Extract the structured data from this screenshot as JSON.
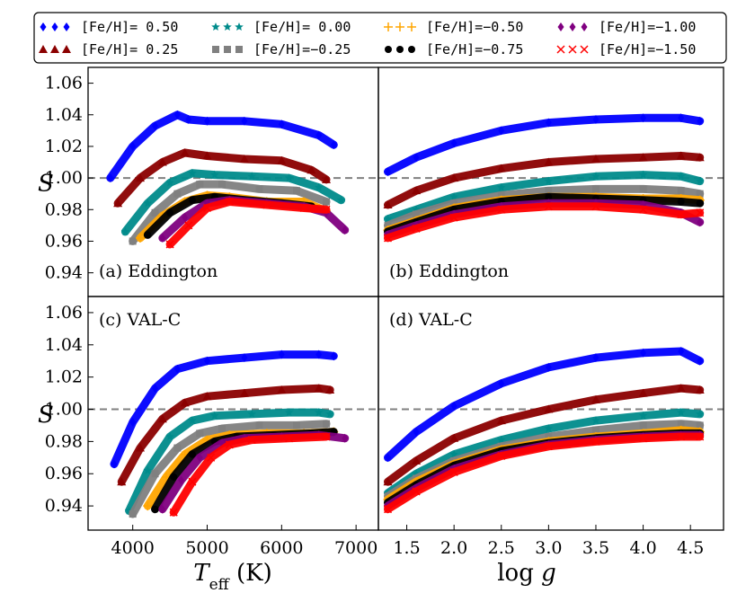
{
  "legend": [
    {
      "label": "[Fe/H]= 0.50",
      "color": "#0000ff",
      "marker": "diamond"
    },
    {
      "label": "[Fe/H]= 0.00",
      "color": "#008b8b",
      "marker": "star"
    },
    {
      "label": "[Fe/H]=−0.50",
      "color": "#ffa500",
      "marker": "plus"
    },
    {
      "label": "[Fe/H]=−1.00",
      "color": "#800080",
      "marker": "diamond"
    },
    {
      "label": "[Fe/H]= 0.25",
      "color": "#8b0000",
      "marker": "triangle"
    },
    {
      "label": "[Fe/H]=−0.25",
      "color": "#808080",
      "marker": "square"
    },
    {
      "label": "[Fe/H]=−0.75",
      "color": "#000000",
      "marker": "circle"
    },
    {
      "label": "[Fe/H]=−1.50",
      "color": "#ff0000",
      "marker": "x"
    }
  ],
  "chart_data": [
    {
      "panel": "(a) Eddington",
      "type": "scatter",
      "xlim": [
        3400,
        7300
      ],
      "ylim": [
        0.925,
        1.07
      ],
      "xticks": [],
      "yticks": [
        "0.94",
        "0.96",
        "0.98",
        "1.00",
        "1.02",
        "1.04",
        "1.06"
      ],
      "ylabel": "S",
      "xlabel": "",
      "reference_line": 1.0,
      "grid": false,
      "series": [
        {
          "name": "[Fe/H]= 0.50",
          "x": [
            3700,
            4000,
            4300,
            4600,
            4750,
            5000,
            5500,
            6000,
            6500,
            6700
          ],
          "y": [
            1.0,
            1.02,
            1.033,
            1.04,
            1.037,
            1.036,
            1.036,
            1.034,
            1.027,
            1.021
          ]
        },
        {
          "name": "[Fe/H]= 0.25",
          "x": [
            3800,
            4100,
            4400,
            4700,
            5000,
            5500,
            6000,
            6400,
            6600
          ],
          "y": [
            0.984,
            1.0,
            1.01,
            1.016,
            1.014,
            1.012,
            1.011,
            1.005,
            0.999
          ]
        },
        {
          "name": "[Fe/H]= 0.00",
          "x": [
            3900,
            4200,
            4500,
            4800,
            5100,
            5600,
            6100,
            6500,
            6800
          ],
          "y": [
            0.966,
            0.984,
            0.997,
            1.003,
            1.002,
            1.001,
            1.0,
            0.994,
            0.986
          ]
        },
        {
          "name": "[Fe/H]=−0.25",
          "x": [
            4000,
            4300,
            4600,
            4900,
            5200,
            5700,
            6200,
            6600
          ],
          "y": [
            0.96,
            0.978,
            0.99,
            0.996,
            0.996,
            0.993,
            0.992,
            0.985
          ]
        },
        {
          "name": "[Fe/H]=−0.50",
          "x": [
            4100,
            4400,
            4700,
            5000,
            5300,
            5800,
            6300,
            6600
          ],
          "y": [
            0.962,
            0.976,
            0.985,
            0.989,
            0.988,
            0.985,
            0.985,
            0.979
          ]
        },
        {
          "name": "[Fe/H]=−0.75",
          "x": [
            4200,
            4500,
            4800,
            5100,
            5500,
            6000,
            6400
          ],
          "y": [
            0.964,
            0.978,
            0.986,
            0.988,
            0.986,
            0.984,
            0.982
          ]
        },
        {
          "name": "[Fe/H]=−1.00",
          "x": [
            4400,
            4700,
            5000,
            5300,
            5800,
            6300,
            6600,
            6850
          ],
          "y": [
            0.962,
            0.975,
            0.984,
            0.986,
            0.984,
            0.982,
            0.978,
            0.967
          ]
        },
        {
          "name": "[Fe/H]=−1.50",
          "x": [
            4500,
            4750,
            5000,
            5300,
            5800,
            6300,
            6600
          ],
          "y": [
            0.958,
            0.97,
            0.981,
            0.985,
            0.983,
            0.981,
            0.98
          ]
        }
      ]
    },
    {
      "panel": "(b) Eddington",
      "type": "scatter",
      "xlim": [
        1.2,
        4.85
      ],
      "ylim": [
        0.925,
        1.07
      ],
      "xticks": [],
      "yticks": [],
      "ylabel": "",
      "xlabel": "",
      "reference_line": 1.0,
      "grid": false,
      "series": [
        {
          "name": "[Fe/H]= 0.50",
          "x": [
            1.3,
            1.6,
            2.0,
            2.5,
            3.0,
            3.5,
            4.0,
            4.4,
            4.6
          ],
          "y": [
            1.004,
            1.013,
            1.022,
            1.03,
            1.035,
            1.037,
            1.038,
            1.038,
            1.036
          ]
        },
        {
          "name": "[Fe/H]= 0.25",
          "x": [
            1.3,
            1.6,
            2.0,
            2.5,
            3.0,
            3.5,
            4.0,
            4.4,
            4.6
          ],
          "y": [
            0.983,
            0.992,
            1.0,
            1.006,
            1.01,
            1.012,
            1.013,
            1.014,
            1.013
          ]
        },
        {
          "name": "[Fe/H]= 0.00",
          "x": [
            1.3,
            1.6,
            2.0,
            2.5,
            3.0,
            3.5,
            4.0,
            4.4,
            4.6
          ],
          "y": [
            0.974,
            0.98,
            0.988,
            0.994,
            0.998,
            1.001,
            1.002,
            1.001,
            0.998
          ]
        },
        {
          "name": "[Fe/H]=−0.25",
          "x": [
            1.3,
            1.6,
            2.0,
            2.5,
            3.0,
            3.5,
            4.0,
            4.4,
            4.6
          ],
          "y": [
            0.97,
            0.977,
            0.984,
            0.989,
            0.992,
            0.993,
            0.993,
            0.992,
            0.99
          ]
        },
        {
          "name": "[Fe/H]=−0.50",
          "x": [
            1.3,
            1.6,
            2.0,
            2.5,
            3.0,
            3.5,
            4.0,
            4.4,
            4.6
          ],
          "y": [
            0.967,
            0.973,
            0.981,
            0.986,
            0.988,
            0.988,
            0.987,
            0.987,
            0.986
          ]
        },
        {
          "name": "[Fe/H]=−0.75",
          "x": [
            1.3,
            1.6,
            2.0,
            2.5,
            3.0,
            3.5,
            4.0,
            4.4,
            4.6
          ],
          "y": [
            0.966,
            0.972,
            0.98,
            0.985,
            0.988,
            0.987,
            0.986,
            0.985,
            0.984
          ]
        },
        {
          "name": "[Fe/H]=−1.00",
          "x": [
            1.3,
            1.6,
            2.0,
            2.5,
            3.0,
            3.5,
            4.0,
            4.4,
            4.6
          ],
          "y": [
            0.964,
            0.97,
            0.977,
            0.982,
            0.984,
            0.984,
            0.983,
            0.978,
            0.972
          ]
        },
        {
          "name": "[Fe/H]=−1.50",
          "x": [
            1.3,
            1.6,
            2.0,
            2.5,
            3.0,
            3.5,
            4.0,
            4.4,
            4.6
          ],
          "y": [
            0.962,
            0.968,
            0.975,
            0.98,
            0.982,
            0.982,
            0.98,
            0.977,
            0.978
          ]
        }
      ]
    },
    {
      "panel": "(c) VAL-C",
      "type": "scatter",
      "xlim": [
        3400,
        7300
      ],
      "ylim": [
        0.925,
        1.07
      ],
      "xticks": [
        "4000",
        "5000",
        "6000",
        "7000"
      ],
      "yticks": [
        "0.94",
        "0.96",
        "0.98",
        "1.00",
        "1.02",
        "1.04",
        "1.06"
      ],
      "ylabel": "S",
      "xlabel": "T_eff (K)",
      "reference_line": 1.0,
      "grid": false,
      "series": [
        {
          "name": "[Fe/H]= 0.50",
          "x": [
            3750,
            4000,
            4300,
            4600,
            5000,
            5500,
            6000,
            6500,
            6700
          ],
          "y": [
            0.966,
            0.992,
            1.013,
            1.025,
            1.03,
            1.032,
            1.034,
            1.034,
            1.033
          ]
        },
        {
          "name": "[Fe/H]= 0.25",
          "x": [
            3850,
            4100,
            4400,
            4700,
            5000,
            5500,
            6000,
            6500,
            6650
          ],
          "y": [
            0.955,
            0.976,
            0.994,
            1.004,
            1.008,
            1.01,
            1.012,
            1.013,
            1.012
          ]
        },
        {
          "name": "[Fe/H]= 0.00",
          "x": [
            3950,
            4200,
            4500,
            4800,
            5100,
            5600,
            6100,
            6500,
            6650
          ],
          "y": [
            0.937,
            0.962,
            0.983,
            0.993,
            0.996,
            0.997,
            0.998,
            0.998,
            0.997
          ]
        },
        {
          "name": "[Fe/H]=−0.25",
          "x": [
            4000,
            4300,
            4600,
            4900,
            5200,
            5700,
            6200,
            6600
          ],
          "y": [
            0.935,
            0.96,
            0.976,
            0.985,
            0.988,
            0.99,
            0.99,
            0.991
          ]
        },
        {
          "name": "[Fe/H]=−0.50",
          "x": [
            4200,
            4450,
            4700,
            5000,
            5300,
            5800,
            6300,
            6700
          ],
          "y": [
            0.94,
            0.958,
            0.972,
            0.981,
            0.984,
            0.985,
            0.985,
            0.986
          ]
        },
        {
          "name": "[Fe/H]=−0.75",
          "x": [
            4300,
            4550,
            4800,
            5100,
            5400,
            5900,
            6400,
            6700
          ],
          "y": [
            0.938,
            0.958,
            0.972,
            0.98,
            0.983,
            0.984,
            0.985,
            0.986
          ]
        },
        {
          "name": "[Fe/H]=−1.00",
          "x": [
            4400,
            4650,
            4900,
            5200,
            5500,
            6000,
            6500,
            6850
          ],
          "y": [
            0.938,
            0.956,
            0.97,
            0.979,
            0.982,
            0.983,
            0.984,
            0.982
          ]
        },
        {
          "name": "[Fe/H]=−1.50",
          "x": [
            4550,
            4800,
            5050,
            5300,
            5600,
            6100,
            6600
          ],
          "y": [
            0.936,
            0.955,
            0.97,
            0.978,
            0.981,
            0.982,
            0.983
          ]
        }
      ]
    },
    {
      "panel": "(d) VAL-C",
      "type": "scatter",
      "xlim": [
        1.2,
        4.85
      ],
      "ylim": [
        0.925,
        1.07
      ],
      "xticks": [
        "1.5",
        "2.0",
        "2.5",
        "3.0",
        "3.5",
        "4.0",
        "4.5"
      ],
      "yticks": [],
      "ylabel": "",
      "xlabel": "log g",
      "reference_line": 1.0,
      "grid": false,
      "series": [
        {
          "name": "[Fe/H]= 0.50",
          "x": [
            1.3,
            1.6,
            2.0,
            2.5,
            3.0,
            3.5,
            4.0,
            4.4,
            4.6
          ],
          "y": [
            0.97,
            0.986,
            1.002,
            1.016,
            1.026,
            1.032,
            1.035,
            1.036,
            1.03
          ]
        },
        {
          "name": "[Fe/H]= 0.25",
          "x": [
            1.3,
            1.6,
            2.0,
            2.5,
            3.0,
            3.5,
            4.0,
            4.4,
            4.6
          ],
          "y": [
            0.955,
            0.968,
            0.982,
            0.993,
            1.0,
            1.006,
            1.01,
            1.013,
            1.012
          ]
        },
        {
          "name": "[Fe/H]= 0.00",
          "x": [
            1.3,
            1.6,
            2.0,
            2.5,
            3.0,
            3.5,
            4.0,
            4.4,
            4.6
          ],
          "y": [
            0.948,
            0.96,
            0.972,
            0.981,
            0.988,
            0.993,
            0.996,
            0.998,
            0.997
          ]
        },
        {
          "name": "[Fe/H]=−0.25",
          "x": [
            1.3,
            1.6,
            2.0,
            2.5,
            3.0,
            3.5,
            4.0,
            4.4,
            4.6
          ],
          "y": [
            0.946,
            0.957,
            0.968,
            0.977,
            0.983,
            0.987,
            0.99,
            0.991,
            0.99
          ]
        },
        {
          "name": "[Fe/H]=−0.50",
          "x": [
            1.3,
            1.6,
            2.0,
            2.5,
            3.0,
            3.5,
            4.0,
            4.4,
            4.6
          ],
          "y": [
            0.944,
            0.955,
            0.966,
            0.975,
            0.98,
            0.983,
            0.985,
            0.987,
            0.986
          ]
        },
        {
          "name": "[Fe/H]=−0.75",
          "x": [
            1.3,
            1.6,
            2.0,
            2.5,
            3.0,
            3.5,
            4.0,
            4.4,
            4.6
          ],
          "y": [
            0.942,
            0.953,
            0.965,
            0.974,
            0.979,
            0.982,
            0.984,
            0.985,
            0.985
          ]
        },
        {
          "name": "[Fe/H]=−1.00",
          "x": [
            1.3,
            1.6,
            2.0,
            2.5,
            3.0,
            3.5,
            4.0,
            4.4,
            4.6
          ],
          "y": [
            0.94,
            0.951,
            0.963,
            0.972,
            0.978,
            0.981,
            0.983,
            0.984,
            0.984
          ]
        },
        {
          "name": "[Fe/H]=−1.50",
          "x": [
            1.3,
            1.6,
            2.0,
            2.5,
            3.0,
            3.5,
            4.0,
            4.4,
            4.6
          ],
          "y": [
            0.938,
            0.949,
            0.961,
            0.971,
            0.977,
            0.98,
            0.982,
            0.983,
            0.983
          ]
        }
      ]
    }
  ]
}
